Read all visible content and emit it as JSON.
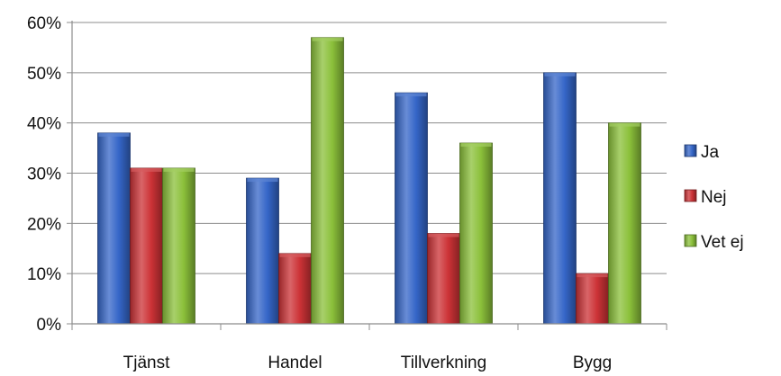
{
  "colors": {
    "ja": "#3566c8",
    "nej": "#cc3236",
    "vet_ej": "#8bc03a",
    "grid": "#8c8c8c",
    "axis": "#8c8c8c"
  },
  "chart_data": {
    "type": "bar",
    "title": "",
    "xlabel": "",
    "ylabel": "",
    "categories": [
      "Tjänst",
      "Handel",
      "Tillverkning",
      "Bygg"
    ],
    "series": [
      {
        "name": "Ja",
        "color": "#3566c8",
        "values": [
          0.38,
          0.29,
          0.46,
          0.5
        ]
      },
      {
        "name": "Nej",
        "color": "#cc3236",
        "values": [
          0.31,
          0.14,
          0.18,
          0.1
        ]
      },
      {
        "name": "Vet ej",
        "color": "#8bc03a",
        "values": [
          0.31,
          0.57,
          0.36,
          0.4
        ]
      }
    ],
    "ylim": [
      0,
      0.6
    ],
    "yticks": [
      0,
      0.1,
      0.2,
      0.3,
      0.4,
      0.5,
      0.6
    ],
    "ytick_labels": [
      "0%",
      "10%",
      "20%",
      "30%",
      "40%",
      "50%",
      "60%"
    ],
    "grid": true,
    "legend_position": "right"
  }
}
